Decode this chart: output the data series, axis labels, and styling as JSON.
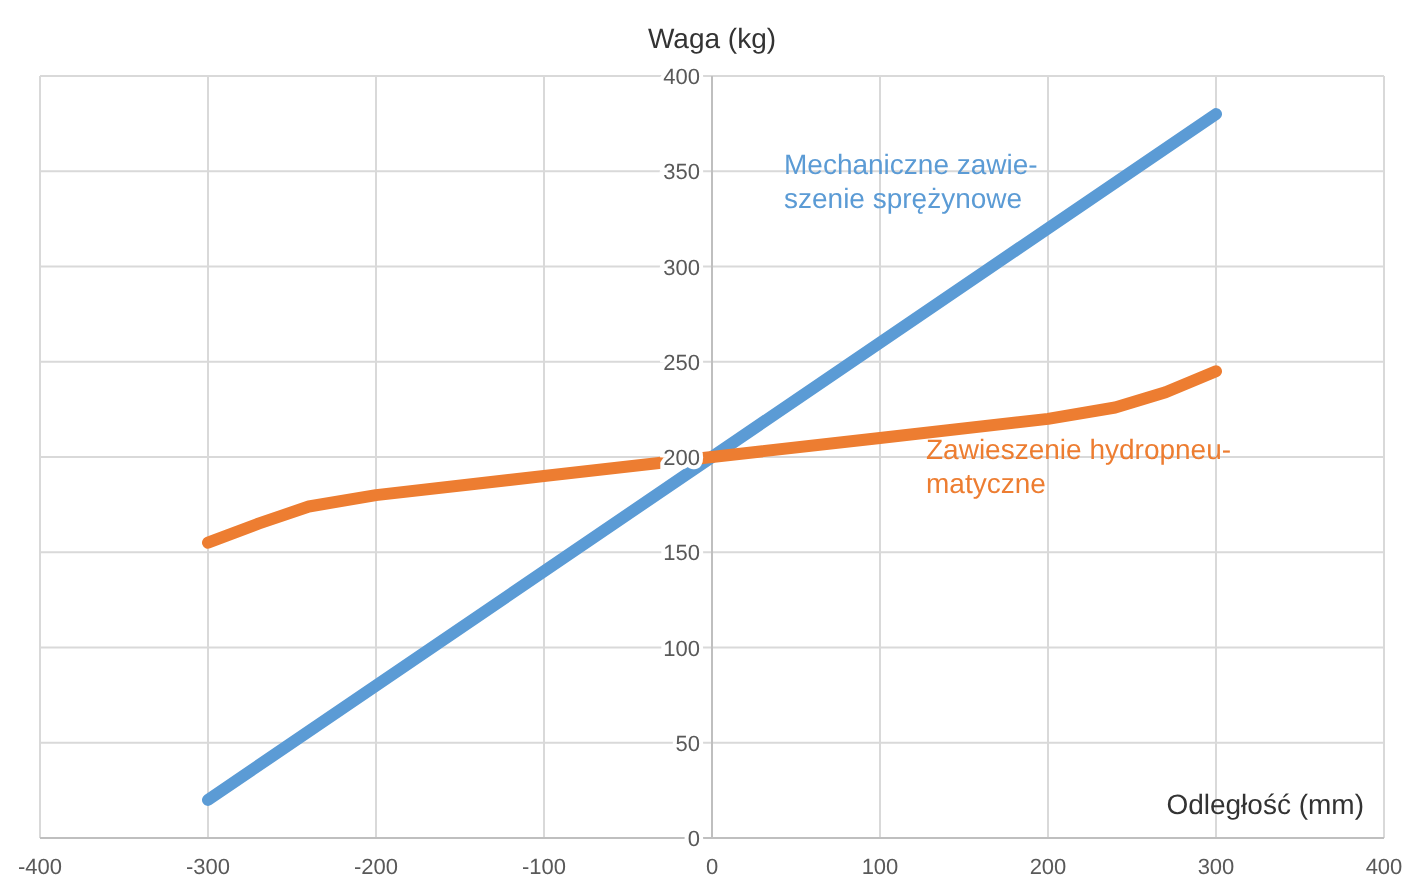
{
  "chart_data": {
    "type": "line",
    "xlabel": "Odległość (mm)",
    "ylabel": "Waga (kg)",
    "xlim": [
      -400,
      400
    ],
    "xticks": [
      -400,
      -300,
      -200,
      -100,
      0,
      100,
      200,
      300,
      400
    ],
    "ylim": [
      0,
      400
    ],
    "yticks": [
      0,
      50,
      100,
      150,
      200,
      250,
      300,
      350,
      400
    ],
    "grid": true,
    "legend": false,
    "marker": "none",
    "line_style": "solid",
    "series": [
      {
        "name": "Mechaniczne zawie-\nszenie sprężynowe",
        "color": "#5b9bd5",
        "x": [
          -300,
          300
        ],
        "values": [
          20,
          380
        ]
      },
      {
        "name": "Zawieszenie hydropneu-\nmatyczne",
        "color": "#ed7d31",
        "x": [
          -300,
          -270,
          -240,
          -200,
          -100,
          0,
          100,
          200,
          240,
          270,
          300
        ],
        "values": [
          155,
          165,
          174,
          180,
          190,
          200,
          210,
          220,
          226,
          234,
          245
        ]
      }
    ]
  }
}
